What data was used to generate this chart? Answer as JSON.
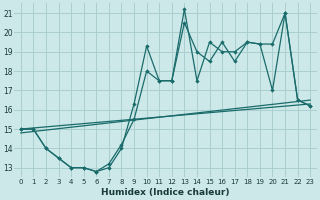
{
  "xlabel": "Humidex (Indice chaleur)",
  "bg_color": "#cce8e8",
  "grid_color": "#aacfcf",
  "line_color": "#1a6b6b",
  "xlim": [
    -0.5,
    23.5
  ],
  "ylim": [
    12.5,
    21.5
  ],
  "xticks": [
    0,
    1,
    2,
    3,
    4,
    5,
    6,
    7,
    8,
    9,
    10,
    11,
    12,
    13,
    14,
    15,
    16,
    17,
    18,
    19,
    20,
    21,
    22,
    23
  ],
  "yticks": [
    13,
    14,
    15,
    16,
    17,
    18,
    19,
    20,
    21
  ],
  "series_main_x": [
    0,
    1,
    2,
    3,
    4,
    5,
    6,
    7,
    8,
    9,
    10,
    11,
    12,
    13,
    14,
    15,
    16,
    17,
    18,
    19,
    20,
    21,
    22,
    23
  ],
  "series_main_y": [
    15.0,
    15.0,
    14.0,
    13.5,
    13.0,
    13.0,
    12.8,
    13.0,
    14.0,
    16.3,
    19.3,
    17.5,
    17.5,
    21.2,
    17.5,
    19.5,
    19.0,
    19.0,
    19.5,
    19.4,
    17.0,
    21.0,
    16.5,
    16.2
  ],
  "series_smooth_x": [
    0,
    1,
    2,
    3,
    4,
    5,
    6,
    7,
    8,
    9,
    10,
    11,
    12,
    13,
    14,
    15,
    16,
    17,
    18,
    19,
    20,
    21,
    22,
    23
  ],
  "series_smooth_y": [
    15.0,
    15.0,
    14.0,
    13.5,
    13.0,
    13.0,
    12.8,
    13.2,
    14.2,
    15.5,
    18.0,
    17.5,
    17.5,
    20.5,
    19.0,
    18.5,
    19.5,
    18.5,
    19.5,
    19.4,
    19.4,
    21.0,
    16.5,
    16.2
  ],
  "trend1_x": [
    0,
    23
  ],
  "trend1_y": [
    15.0,
    16.3
  ],
  "trend2_x": [
    0,
    23
  ],
  "trend2_y": [
    14.8,
    16.5
  ]
}
